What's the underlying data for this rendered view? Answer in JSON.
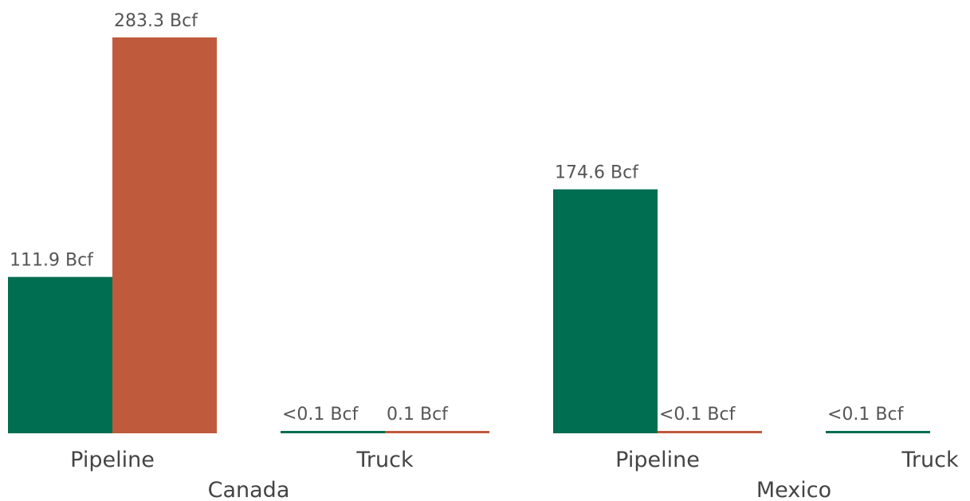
{
  "chart_data": {
    "type": "bar",
    "title": "",
    "xlabel": "",
    "ylabel": "",
    "ylim": [
      0,
      283.3
    ],
    "grid": false,
    "legend": "none",
    "groups": [
      {
        "name": "Canada",
        "categories": [
          {
            "name": "Pipeline",
            "bars": [
              {
                "value": 111.9,
                "label": "111.9 Bcf",
                "color": "#006e51"
              },
              {
                "value": 283.3,
                "label": "283.3 Bcf",
                "color": "#c05a3c"
              }
            ]
          },
          {
            "name": "Truck",
            "bars": [
              {
                "value": 0.05,
                "label": "<0.1 Bcf",
                "color": "#006e51"
              },
              {
                "value": 0.1,
                "label": "0.1 Bcf",
                "color": "#c05a3c"
              }
            ]
          }
        ]
      },
      {
        "name": "Mexico",
        "categories": [
          {
            "name": "Pipeline",
            "bars": [
              {
                "value": 174.6,
                "label": "174.6 Bcf",
                "color": "#006e51"
              },
              {
                "value": 0.05,
                "label": "<0.1 Bcf",
                "color": "#c05a3c"
              }
            ]
          },
          {
            "name": "Truck",
            "bars": [
              {
                "value": 0.05,
                "label": "<0.1 Bcf",
                "color": "#006e51"
              }
            ]
          }
        ]
      }
    ]
  }
}
